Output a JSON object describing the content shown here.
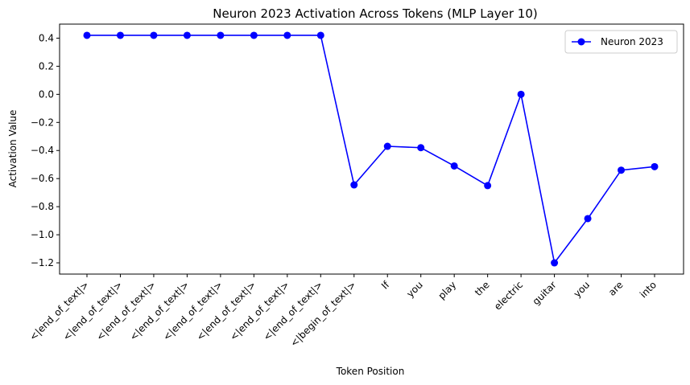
{
  "chart_data": {
    "type": "line",
    "title": "Neuron 2023 Activation Across Tokens (MLP Layer 10)",
    "xlabel": "Token Position",
    "ylabel": "Activation Value",
    "categories": [
      "<|end_of_text|>",
      "<|end_of_text|>",
      "<|end_of_text|>",
      "<|end_of_text|>",
      "<|end_of_text|>",
      "<|end_of_text|>",
      "<|end_of_text|>",
      "<|end_of_text|>",
      "<|begin_of_text|>",
      "If",
      "you",
      "play",
      "the",
      "electric",
      "guitar",
      "you",
      "are",
      "into"
    ],
    "series": [
      {
        "name": "Neuron 2023",
        "color": "#0000ff",
        "marker": "circle",
        "values": [
          0.42,
          0.42,
          0.42,
          0.42,
          0.42,
          0.42,
          0.42,
          0.42,
          -0.645,
          -0.37,
          -0.38,
          -0.51,
          -0.65,
          0.0,
          -1.2,
          -0.885,
          -0.54,
          -0.515
        ]
      }
    ],
    "ylim": [
      -1.28,
      0.5
    ],
    "yticks": [
      0.4,
      0.2,
      0.0,
      -0.2,
      -0.4,
      -0.6,
      -0.8,
      -1.0,
      -1.2
    ],
    "ytick_labels": [
      "0.4",
      "0.2",
      "0.0",
      "−0.2",
      "−0.4",
      "−0.6",
      "−0.8",
      "−1.0",
      "−1.2"
    ],
    "grid": false,
    "legend_position": "top-right"
  }
}
